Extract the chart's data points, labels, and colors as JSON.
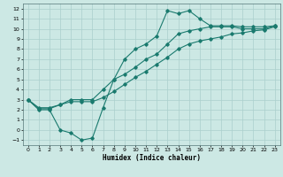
{
  "xlabel": "Humidex (Indice chaleur)",
  "bg_color": "#cce8e4",
  "line_color": "#1a7a6e",
  "grid_color": "#aacfcc",
  "xlim": [
    -0.5,
    23.5
  ],
  "ylim": [
    -1.5,
    12.5
  ],
  "xticks": [
    0,
    1,
    2,
    3,
    4,
    5,
    6,
    7,
    8,
    9,
    10,
    11,
    12,
    13,
    14,
    15,
    16,
    17,
    18,
    19,
    20,
    21,
    22,
    23
  ],
  "yticks": [
    -1,
    0,
    1,
    2,
    3,
    4,
    5,
    6,
    7,
    8,
    9,
    10,
    11,
    12
  ],
  "line1_x": [
    0,
    1,
    2,
    3,
    4,
    5,
    6,
    7,
    8,
    9,
    10,
    11,
    12,
    13,
    14,
    15,
    16,
    17,
    18,
    19,
    20,
    21,
    22,
    23
  ],
  "line1_y": [
    3,
    2,
    2,
    0,
    -0.3,
    -1,
    -0.8,
    2.2,
    5,
    7,
    8,
    8.5,
    9.3,
    11.8,
    11.5,
    11.8,
    11,
    10.3,
    10.3,
    10.3,
    10.2,
    10.2,
    10.2,
    10.3
  ],
  "line2_x": [
    0,
    1,
    2,
    3,
    4,
    5,
    6,
    7,
    8,
    9,
    10,
    11,
    12,
    13,
    14,
    15,
    16,
    17,
    18,
    19,
    20,
    21,
    22,
    23
  ],
  "line2_y": [
    3,
    2.2,
    2.2,
    2.5,
    3,
    3,
    3,
    4,
    5,
    5.5,
    6.2,
    7,
    7.5,
    8.5,
    9.5,
    9.8,
    10,
    10.2,
    10.2,
    10.2,
    10.0,
    10.0,
    10.0,
    10.3
  ],
  "line3_x": [
    0,
    1,
    2,
    3,
    4,
    5,
    6,
    7,
    8,
    9,
    10,
    11,
    12,
    13,
    14,
    15,
    16,
    17,
    18,
    19,
    20,
    21,
    22,
    23
  ],
  "line3_y": [
    3,
    2.1,
    2.1,
    2.5,
    2.8,
    2.8,
    2.8,
    3.2,
    3.8,
    4.5,
    5.2,
    5.8,
    6.5,
    7.2,
    8,
    8.5,
    8.8,
    9.0,
    9.2,
    9.5,
    9.6,
    9.8,
    9.9,
    10.2
  ]
}
